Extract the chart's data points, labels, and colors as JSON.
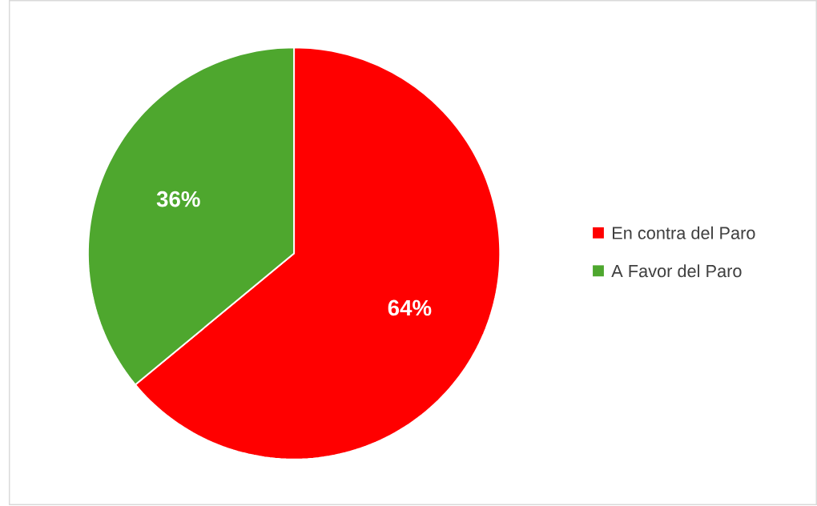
{
  "chart_data": {
    "type": "pie",
    "categories": [
      "En contra del Paro",
      "A Favor del Paro"
    ],
    "values": [
      64,
      36
    ],
    "colors": [
      "#ff0000",
      "#4ea72e"
    ],
    "value_labels": [
      "64%",
      "36%"
    ],
    "legend": "right"
  }
}
